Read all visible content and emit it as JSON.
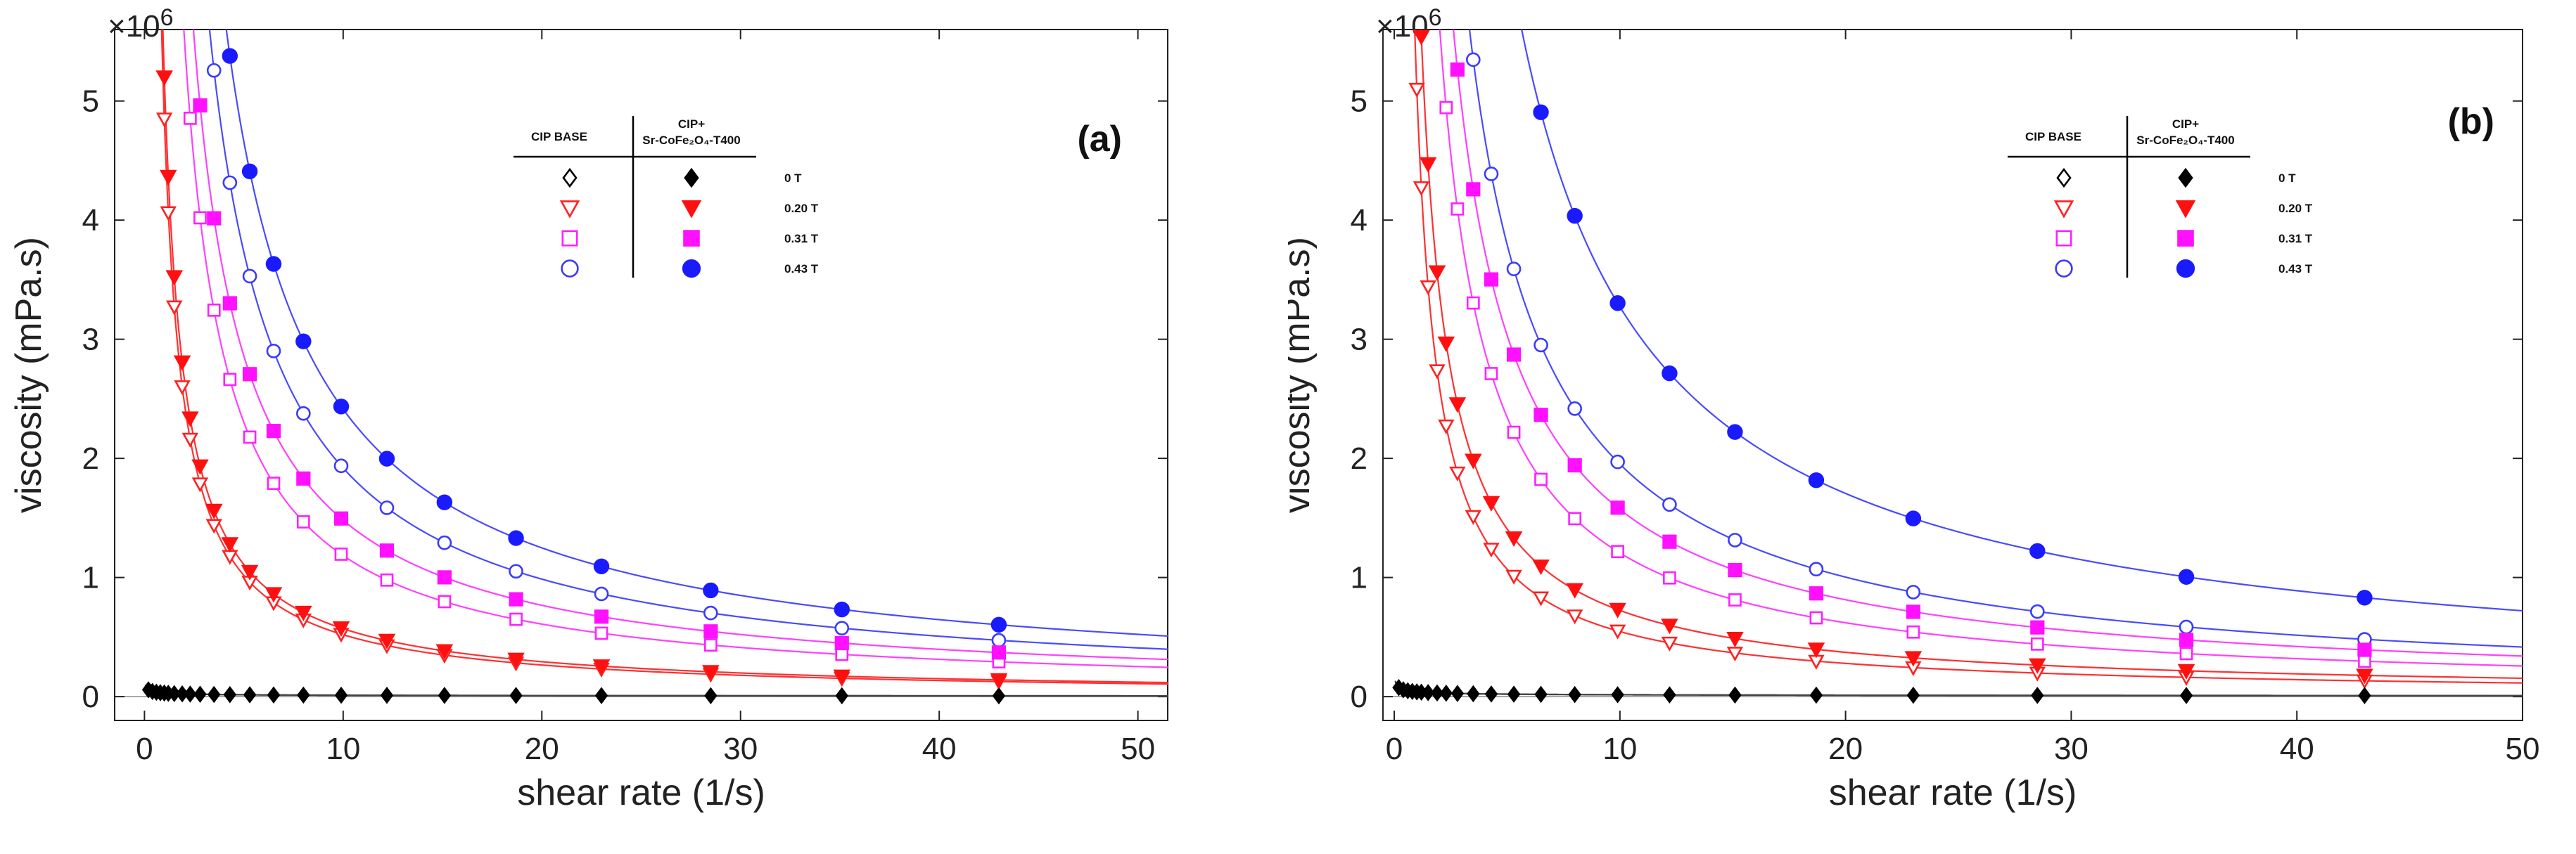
{
  "chart_data": [
    {
      "type": "line",
      "panel_label": "(a)",
      "xlabel": "shear rate (1/s)",
      "ylabel": "viscosity (mPa.s)",
      "y_exponent_label": "×10",
      "y_exponent_power": "6",
      "xlim": [
        -1.5,
        51.5
      ],
      "ylim": [
        -0.2,
        5.6
      ],
      "xticks": [
        "0",
        "10",
        "20",
        "30",
        "40",
        "50"
      ],
      "yticks": [
        "0",
        "1",
        "2",
        "3",
        "4",
        "5"
      ],
      "legend": {
        "header_base": "CIP BASE",
        "header_comp_line1": "CIP+",
        "header_comp_line2": "Sr-CoFe₂O₄-T400",
        "fields": [
          "0 T",
          "0.20 T",
          "0.31 T",
          "0.43 T"
        ]
      },
      "sample_x": [
        0.2,
        0.4,
        0.6,
        0.8,
        1.0,
        1.2,
        1.5,
        1.9,
        2.3,
        2.8,
        3.5,
        4.3,
        5.3,
        6.5,
        8.0,
        9.9,
        12.2,
        15.1,
        18.7,
        23.0,
        28.5,
        35.1,
        43.0
      ],
      "series": [
        {
          "name": "CIP BASE 0 T",
          "field": "0 T",
          "group": "base",
          "marker": "diamond-open",
          "color": "#000000",
          "line_color": "#444444",
          "K": 0.03,
          "n": -0.4
        },
        {
          "name": "CIP BASE 0.20 T",
          "field": "0.20 T",
          "group": "base",
          "marker": "triangle-open",
          "color": "#ff2020",
          "line_color": "#ff3030",
          "K": 4.85,
          "n": -0.97
        },
        {
          "name": "CIP BASE 0.31 T",
          "field": "0.31 T",
          "group": "base",
          "marker": "square-open",
          "color": "#ff20ff",
          "line_color": "#ff40ff",
          "K": 10.8,
          "n": -0.96
        },
        {
          "name": "CIP BASE 0.43 T",
          "field": "0.43 T",
          "group": "base",
          "marker": "circle-open",
          "color": "#3a3aff",
          "line_color": "#4a4aff",
          "K": 17.5,
          "n": -0.96
        },
        {
          "name": "CIP+Sr-CoFe2O4-T400 0 T",
          "field": "0 T",
          "group": "composite",
          "marker": "diamond-filled",
          "color": "#000000",
          "line_color": "#444444",
          "K": 0.03,
          "n": -0.4
        },
        {
          "name": "CIP+Sr-CoFe2O4-T400 0.20 T",
          "field": "0.20 T",
          "group": "composite",
          "marker": "triangle-filled",
          "color": "#ff1010",
          "line_color": "#ff3030",
          "K": 5.2,
          "n": -0.96
        },
        {
          "name": "CIP+Sr-CoFe2O4-T400 0.31 T",
          "field": "0.31 T",
          "group": "composite",
          "marker": "square-filled",
          "color": "#ff10ff",
          "line_color": "#ff40ff",
          "K": 13.2,
          "n": -0.95
        },
        {
          "name": "CIP+Sr-CoFe2O4-T400 0.43 T",
          "field": "0.43 T",
          "group": "composite",
          "marker": "circle-filled",
          "color": "#1a1aff",
          "line_color": "#4a4aff",
          "K": 21.5,
          "n": -0.95
        }
      ]
    },
    {
      "type": "line",
      "panel_label": "(b)",
      "xlabel": "shear rate (1/s)",
      "ylabel": "viscosity (mPa.s)",
      "y_exponent_label": "×10",
      "y_exponent_power": "6",
      "xlim": [
        -0.5,
        50
      ],
      "ylim": [
        -0.2,
        5.6
      ],
      "xticks": [
        "0",
        "10",
        "20",
        "30",
        "40",
        "50"
      ],
      "yticks": [
        "0",
        "1",
        "2",
        "3",
        "4",
        "5"
      ],
      "legend": {
        "header_base": "CIP BASE",
        "header_comp_line1": "CIP+",
        "header_comp_line2": "Sr-CoFe₂O₄-T400",
        "fields": [
          "0 T",
          "0.20 T",
          "0.31 T",
          "0.43 T"
        ]
      },
      "sample_x": [
        0.2,
        0.4,
        0.6,
        0.8,
        1.0,
        1.2,
        1.5,
        1.9,
        2.3,
        2.8,
        3.5,
        4.3,
        5.3,
        6.5,
        8.0,
        9.9,
        12.2,
        15.1,
        18.7,
        23.0,
        28.5,
        35.1,
        43.0
      ],
      "series": [
        {
          "name": "CIP BASE 0 T",
          "field": "0 T",
          "group": "base",
          "marker": "diamond-open",
          "color": "#000000",
          "line_color": "#444444",
          "K": 0.04,
          "n": -0.4
        },
        {
          "name": "CIP BASE 0.20 T",
          "field": "0.20 T",
          "group": "base",
          "marker": "triangle-open",
          "color": "#ff2020",
          "line_color": "#ff3030",
          "K": 5.1,
          "n": -0.97
        },
        {
          "name": "CIP BASE 0.31 T",
          "field": "0.31 T",
          "group": "base",
          "marker": "square-open",
          "color": "#ff20ff",
          "line_color": "#ff40ff",
          "K": 11.0,
          "n": -0.96
        },
        {
          "name": "CIP BASE 0.43 T",
          "field": "0.43 T",
          "group": "base",
          "marker": "circle-open",
          "color": "#3a3aff",
          "line_color": "#4a4aff",
          "K": 17.8,
          "n": -0.96
        },
        {
          "name": "CIP+Sr-CoFe2O4-T400 0 T",
          "field": "0 T",
          "group": "composite",
          "marker": "diamond-filled",
          "color": "#000000",
          "line_color": "#444444",
          "K": 0.04,
          "n": -0.4
        },
        {
          "name": "CIP+Sr-CoFe2O4-T400 0.20 T",
          "field": "0.20 T",
          "group": "composite",
          "marker": "triangle-filled",
          "color": "#ff1010",
          "line_color": "#ff3030",
          "K": 6.6,
          "n": -0.96
        },
        {
          "name": "CIP+Sr-CoFe2O4-T400 0.31 T",
          "field": "0.31 T",
          "group": "composite",
          "marker": "square-filled",
          "color": "#ff10ff",
          "line_color": "#ff40ff",
          "K": 14.0,
          "n": -0.95
        },
        {
          "name": "CIP+Sr-CoFe2O4-T400 0.43 T",
          "field": "0.43 T",
          "group": "composite",
          "marker": "circle-filled",
          "color": "#1a1aff",
          "line_color": "#4a4aff",
          "K": 28.5,
          "n": -0.94
        }
      ]
    }
  ]
}
